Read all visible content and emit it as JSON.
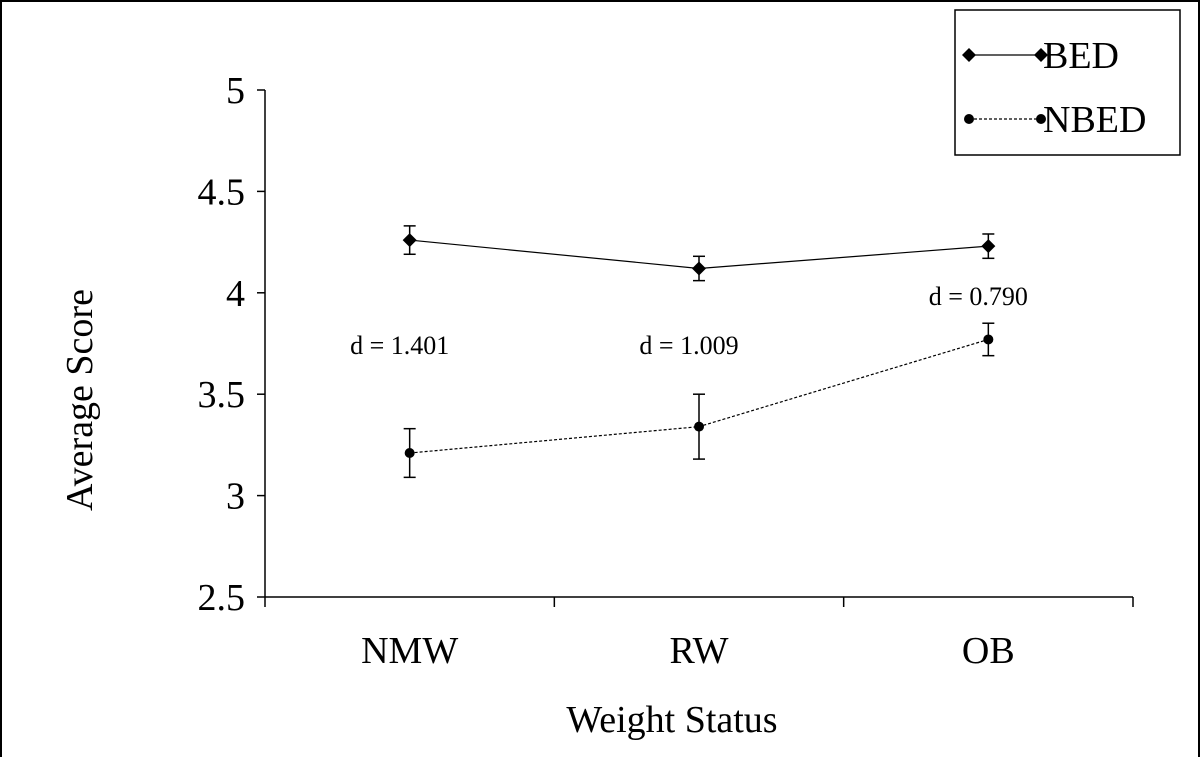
{
  "chart_data": {
    "type": "line",
    "xlabel": "Weight Status",
    "ylabel": "Average Score",
    "categories": [
      "NMW",
      "RW",
      "OB"
    ],
    "ylim": [
      2.5,
      5
    ],
    "yticks": [
      2.5,
      3,
      3.5,
      4,
      4.5,
      5
    ],
    "ytick_labels": [
      "2.5",
      "3",
      "3.5",
      "4",
      "4.5",
      "5"
    ],
    "grid": false,
    "legend_position": "top-right",
    "series": [
      {
        "name": "BED",
        "marker": "diamond",
        "line_style": "solid",
        "values": [
          4.26,
          4.12,
          4.23
        ],
        "error": [
          0.07,
          0.06,
          0.06
        ]
      },
      {
        "name": "NBED",
        "marker": "circle",
        "line_style": "dotted",
        "values": [
          3.21,
          3.34,
          3.77
        ],
        "error": [
          0.12,
          0.16,
          0.08
        ]
      }
    ],
    "annotations": [
      {
        "text": "d = 1.401",
        "category": "NMW"
      },
      {
        "text": "d = 1.009",
        "category": "RW"
      },
      {
        "text": "d = 0.790",
        "category": "OB"
      }
    ],
    "colors": {
      "line": "#000000",
      "background": "#ffffff"
    }
  }
}
